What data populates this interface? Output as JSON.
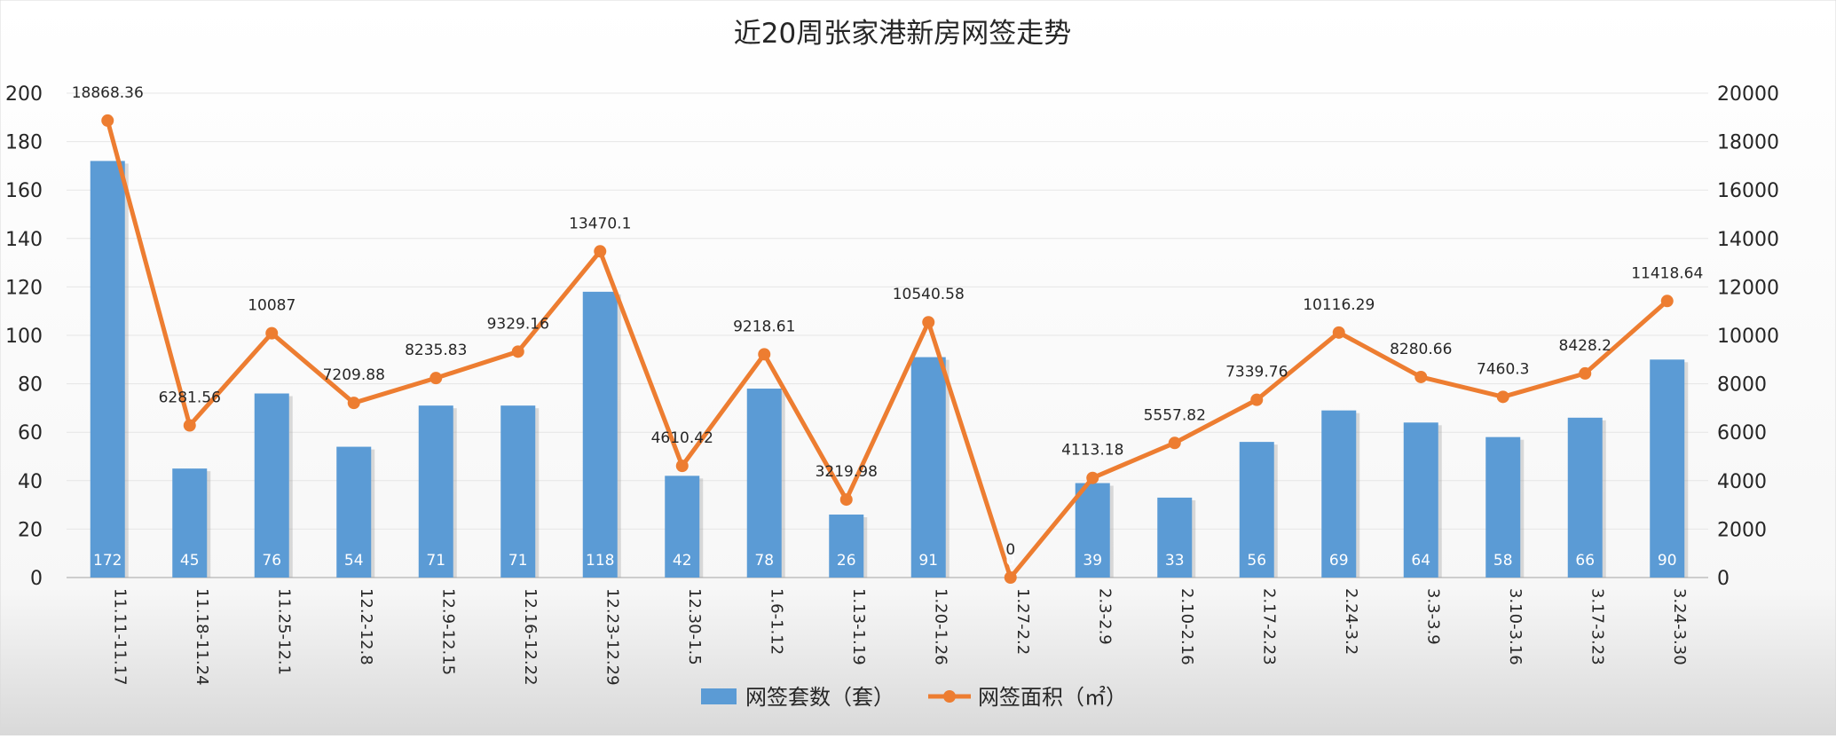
{
  "chart_data": {
    "type": "bar",
    "title": "近20周张家港新房网签走势",
    "categories": [
      "11.11-11.17",
      "11.18-11.24",
      "11.25-12.1",
      "12.2-12.8",
      "12.9-12.15",
      "12.16-12.22",
      "12.23-12.29",
      "12.30-1.5",
      "1.6-1.12",
      "1.13-1.19",
      "1.20-1.26",
      "1.27-2.2",
      "2.3-2.9",
      "2.10-2.16",
      "2.17-2.23",
      "2.24-3.2",
      "3.3-3.9",
      "3.10-3.16",
      "3.17-3.23",
      "3.24-3.30"
    ],
    "series": [
      {
        "name": "网签套数（套）",
        "type": "bar",
        "axis": "left",
        "color": "#5b9bd5",
        "values": [
          172,
          45,
          76,
          54,
          71,
          71,
          118,
          42,
          78,
          26,
          91,
          0,
          39,
          33,
          56,
          69,
          64,
          58,
          66,
          90
        ]
      },
      {
        "name": "网签面积（㎡）",
        "type": "line",
        "axis": "right",
        "color": "#ed7d31",
        "values": [
          18868.36,
          6281.56,
          10087,
          7209.88,
          8235.83,
          9329.16,
          13470.1,
          4610.42,
          9218.61,
          3219.98,
          10540.58,
          0,
          4113.18,
          5557.82,
          7339.76,
          10116.29,
          8280.66,
          7460.3,
          8428.2,
          11418.64
        ]
      }
    ],
    "y_left": {
      "min": 0,
      "max": 200,
      "ticks": [
        0,
        20,
        40,
        60,
        80,
        100,
        120,
        140,
        160,
        180,
        200
      ]
    },
    "y_right": {
      "min": 0,
      "max": 20000,
      "ticks": [
        0,
        2000,
        4000,
        6000,
        8000,
        10000,
        12000,
        14000,
        16000,
        18000,
        20000
      ]
    },
    "grid": true,
    "legend": "bottom-center"
  }
}
